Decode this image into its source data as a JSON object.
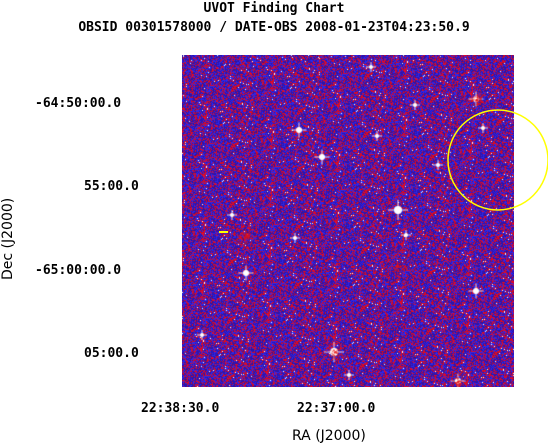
{
  "header": {
    "title": "UVOT Finding Chart",
    "subtitle": "OBSID 00301578000 / DATE-OBS 2008-01-23T04:23:50.9"
  },
  "axes": {
    "y_label": "Dec (J2000)",
    "x_label": "RA (J2000)",
    "y_ticks": [
      "-64:50:00.0",
      "55:00.0",
      "-65:00:00.0",
      "05:00.0"
    ],
    "x_ticks": [
      "22:38:30.0",
      "22:37:00.0"
    ]
  },
  "image": {
    "colors": {
      "background": "#2a1ea6",
      "noise_red": "#d4141e",
      "noise_blue": "#3a3aff",
      "star": "#ffffff",
      "circle": "#ffff00"
    }
  }
}
